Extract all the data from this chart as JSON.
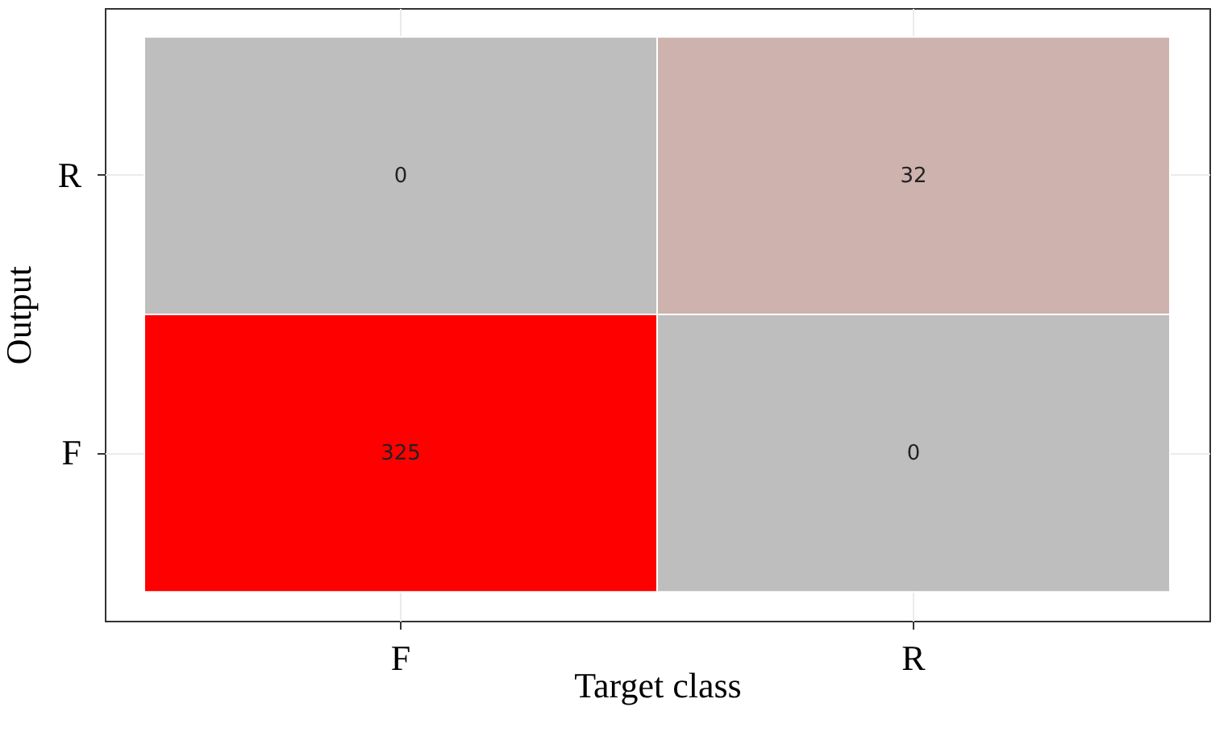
{
  "chart_data": {
    "type": "heatmap",
    "xlabel": "Target class",
    "ylabel": "Output",
    "categories": [
      "F",
      "R"
    ],
    "y_categories": [
      "R",
      "F"
    ],
    "cells": [
      [
        0,
        32
      ],
      [
        325,
        0
      ]
    ],
    "colors": [
      "#bebebe",
      "#cdb2ad",
      "#ff0000",
      "#bebebe"
    ],
    "grid": true,
    "data_labels": true
  }
}
